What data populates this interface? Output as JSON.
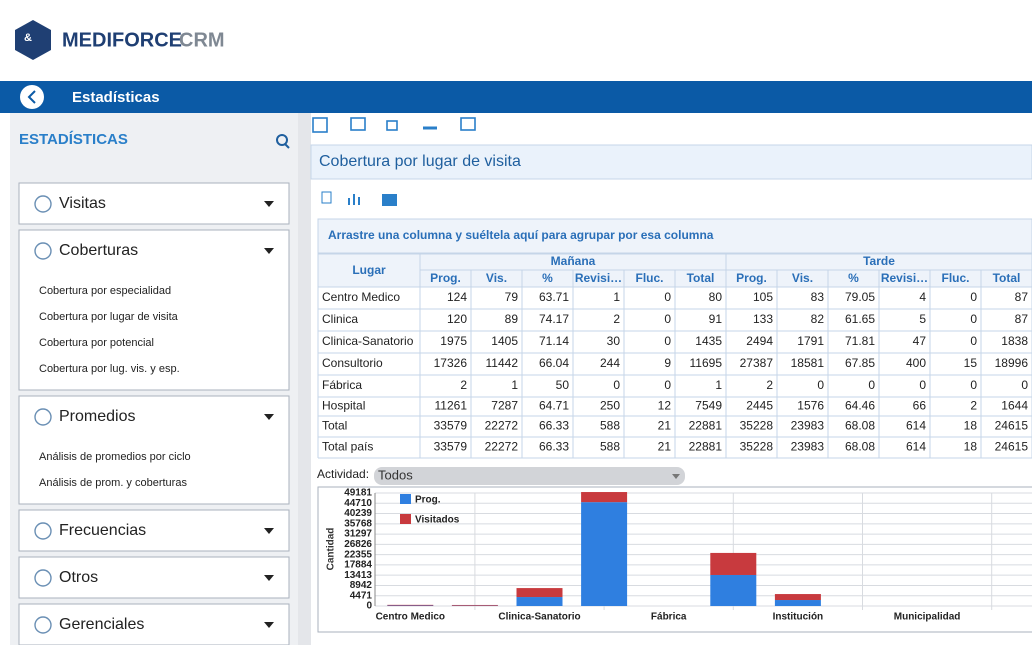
{
  "header": {
    "brand": "MEDIFORCE",
    "brand_suffix": "CRM"
  },
  "nav": {
    "title": "Estadísticas"
  },
  "sidebar": {
    "title": "ESTADÍSTICAS",
    "sections": [
      {
        "label": "Visitas"
      },
      {
        "label": "Coberturas",
        "items": [
          "Cobertura por especialidad",
          "Cobertura por lugar de visita",
          "Cobertura por potencial",
          "Cobertura por lug. vis. y esp."
        ]
      },
      {
        "label": "Promedios",
        "items": [
          "Análisis de promedios por ciclo",
          "Análisis de prom. y coberturas"
        ]
      },
      {
        "label": "Frecuencias"
      },
      {
        "label": "Otros"
      },
      {
        "label": "Gerenciales"
      }
    ]
  },
  "report": {
    "title": "Cobertura por lugar de visita",
    "group_hint": "Arrastre una columna y suéltela aquí para agrupar por esa columna",
    "filter_label": "Actividad:",
    "filter_value": "Todos"
  },
  "table": {
    "row_header": "Lugar",
    "groups": [
      "Mañana",
      "Tarde"
    ],
    "columns": [
      "Prog.",
      "Vis.",
      "%",
      "Revisi…",
      "Fluc.",
      "Total"
    ],
    "rows": [
      {
        "label": "Centro Medico",
        "values": [
          124,
          79,
          63.71,
          1,
          0,
          80,
          105,
          83,
          79.05,
          4,
          0,
          87
        ]
      },
      {
        "label": "Clinica",
        "values": [
          120,
          89,
          74.17,
          2,
          0,
          91,
          133,
          82,
          61.65,
          5,
          0,
          87
        ]
      },
      {
        "label": "Clinica-Sanatorio",
        "values": [
          1975,
          1405,
          71.14,
          30,
          0,
          1435,
          2494,
          1791,
          71.81,
          47,
          0,
          1838
        ]
      },
      {
        "label": "Consultorio",
        "values": [
          17326,
          11442,
          66.04,
          244,
          9,
          11695,
          27387,
          18581,
          67.85,
          400,
          15,
          18996
        ]
      },
      {
        "label": "Fábrica",
        "values": [
          2,
          1,
          50,
          0,
          0,
          1,
          2,
          0,
          0,
          0,
          0,
          0
        ]
      },
      {
        "label": "Hospital",
        "values": [
          11261,
          7287,
          64.71,
          250,
          12,
          7549,
          2445,
          1576,
          64.46,
          66,
          2,
          1644
        ]
      },
      {
        "label": "Total",
        "values": [
          33579,
          22272,
          66.33,
          588,
          21,
          22881,
          35228,
          23983,
          68.08,
          614,
          18,
          24615
        ]
      },
      {
        "label": "Total país",
        "values": [
          33579,
          22272,
          66.33,
          588,
          21,
          22881,
          35228,
          23983,
          68.08,
          614,
          18,
          24615
        ]
      }
    ]
  },
  "chart_data": {
    "type": "bar",
    "stacked": true,
    "y_label": "Cantidad",
    "categories": [
      "Centro Medico",
      null,
      "Clinica-Sanatorio",
      null,
      "Fábrica",
      null,
      "Institución",
      null,
      "Municipalidad",
      null
    ],
    "series": [
      {
        "name": "Prog.",
        "color": "#2f7fe0",
        "values": [
          200,
          150,
          3900,
          45200,
          0,
          13500,
          2600,
          0,
          0,
          0
        ]
      },
      {
        "name": "Visitados",
        "color": "#c83a3e",
        "values": [
          300,
          300,
          3900,
          4400,
          0,
          9600,
          2600,
          0,
          0,
          0
        ]
      }
    ],
    "ylim": [
      0,
      49181
    ],
    "yticks": [
      0,
      4471,
      8942,
      13413,
      17884,
      22355,
      26826,
      31297,
      35768,
      40239,
      44710,
      49181
    ],
    "grid": true,
    "legend": "top-left"
  }
}
